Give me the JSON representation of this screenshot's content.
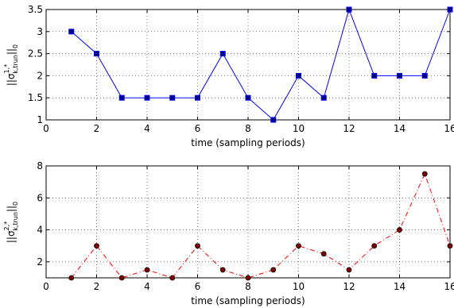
{
  "chart_data": [
    {
      "type": "line",
      "title": "",
      "xlabel": "time (sampling periods)",
      "ylabel_main": "||σ",
      "ylabel_sup": "1,*",
      "ylabel_sub": "k,trun",
      "ylabel_end": "||",
      "ylabel_end_sub": "0",
      "xlim": [
        0,
        16
      ],
      "ylim": [
        1,
        3.5
      ],
      "xticks": [
        "0",
        "2",
        "4",
        "6",
        "8",
        "10",
        "12",
        "14",
        "16"
      ],
      "yticks": [
        "1",
        "1.5",
        "2",
        "2.5",
        "3",
        "3.5"
      ],
      "grid": true,
      "series": [
        {
          "color": "#0000ff",
          "line_style": "solid",
          "marker": "square",
          "marker_fill": "#000080",
          "x": [
            1,
            2,
            3,
            4,
            5,
            6,
            7,
            8,
            9,
            10,
            11,
            12,
            13,
            14,
            15,
            16
          ],
          "y": [
            3,
            2.5,
            1.5,
            1.5,
            1.5,
            1.5,
            2.5,
            1.5,
            1,
            2,
            1.5,
            3.5,
            2,
            2,
            2,
            3.5
          ]
        }
      ]
    },
    {
      "type": "line",
      "title": "",
      "xlabel": "time (sampling periods)",
      "ylabel_main": "||σ",
      "ylabel_sup": "2,*",
      "ylabel_sub": "k,trun",
      "ylabel_end": "||",
      "ylabel_end_sub": "0",
      "xlim": [
        0,
        16
      ],
      "ylim": [
        1,
        8
      ],
      "xticks": [
        "0",
        "2",
        "4",
        "6",
        "8",
        "10",
        "12",
        "14",
        "16"
      ],
      "yticks": [
        "2",
        "4",
        "6",
        "8"
      ],
      "grid": true,
      "series": [
        {
          "color": "#ff0000",
          "line_style": "dash-dot",
          "marker": "circle",
          "marker_fill": "#800000",
          "x": [
            1,
            2,
            3,
            4,
            5,
            6,
            7,
            8,
            9,
            10,
            11,
            12,
            13,
            14,
            15,
            16
          ],
          "y": [
            1,
            3,
            1,
            1.5,
            1,
            3,
            1.5,
            1,
            1.5,
            3,
            2.5,
            1.5,
            3,
            4,
            7.5,
            3
          ]
        }
      ]
    }
  ]
}
